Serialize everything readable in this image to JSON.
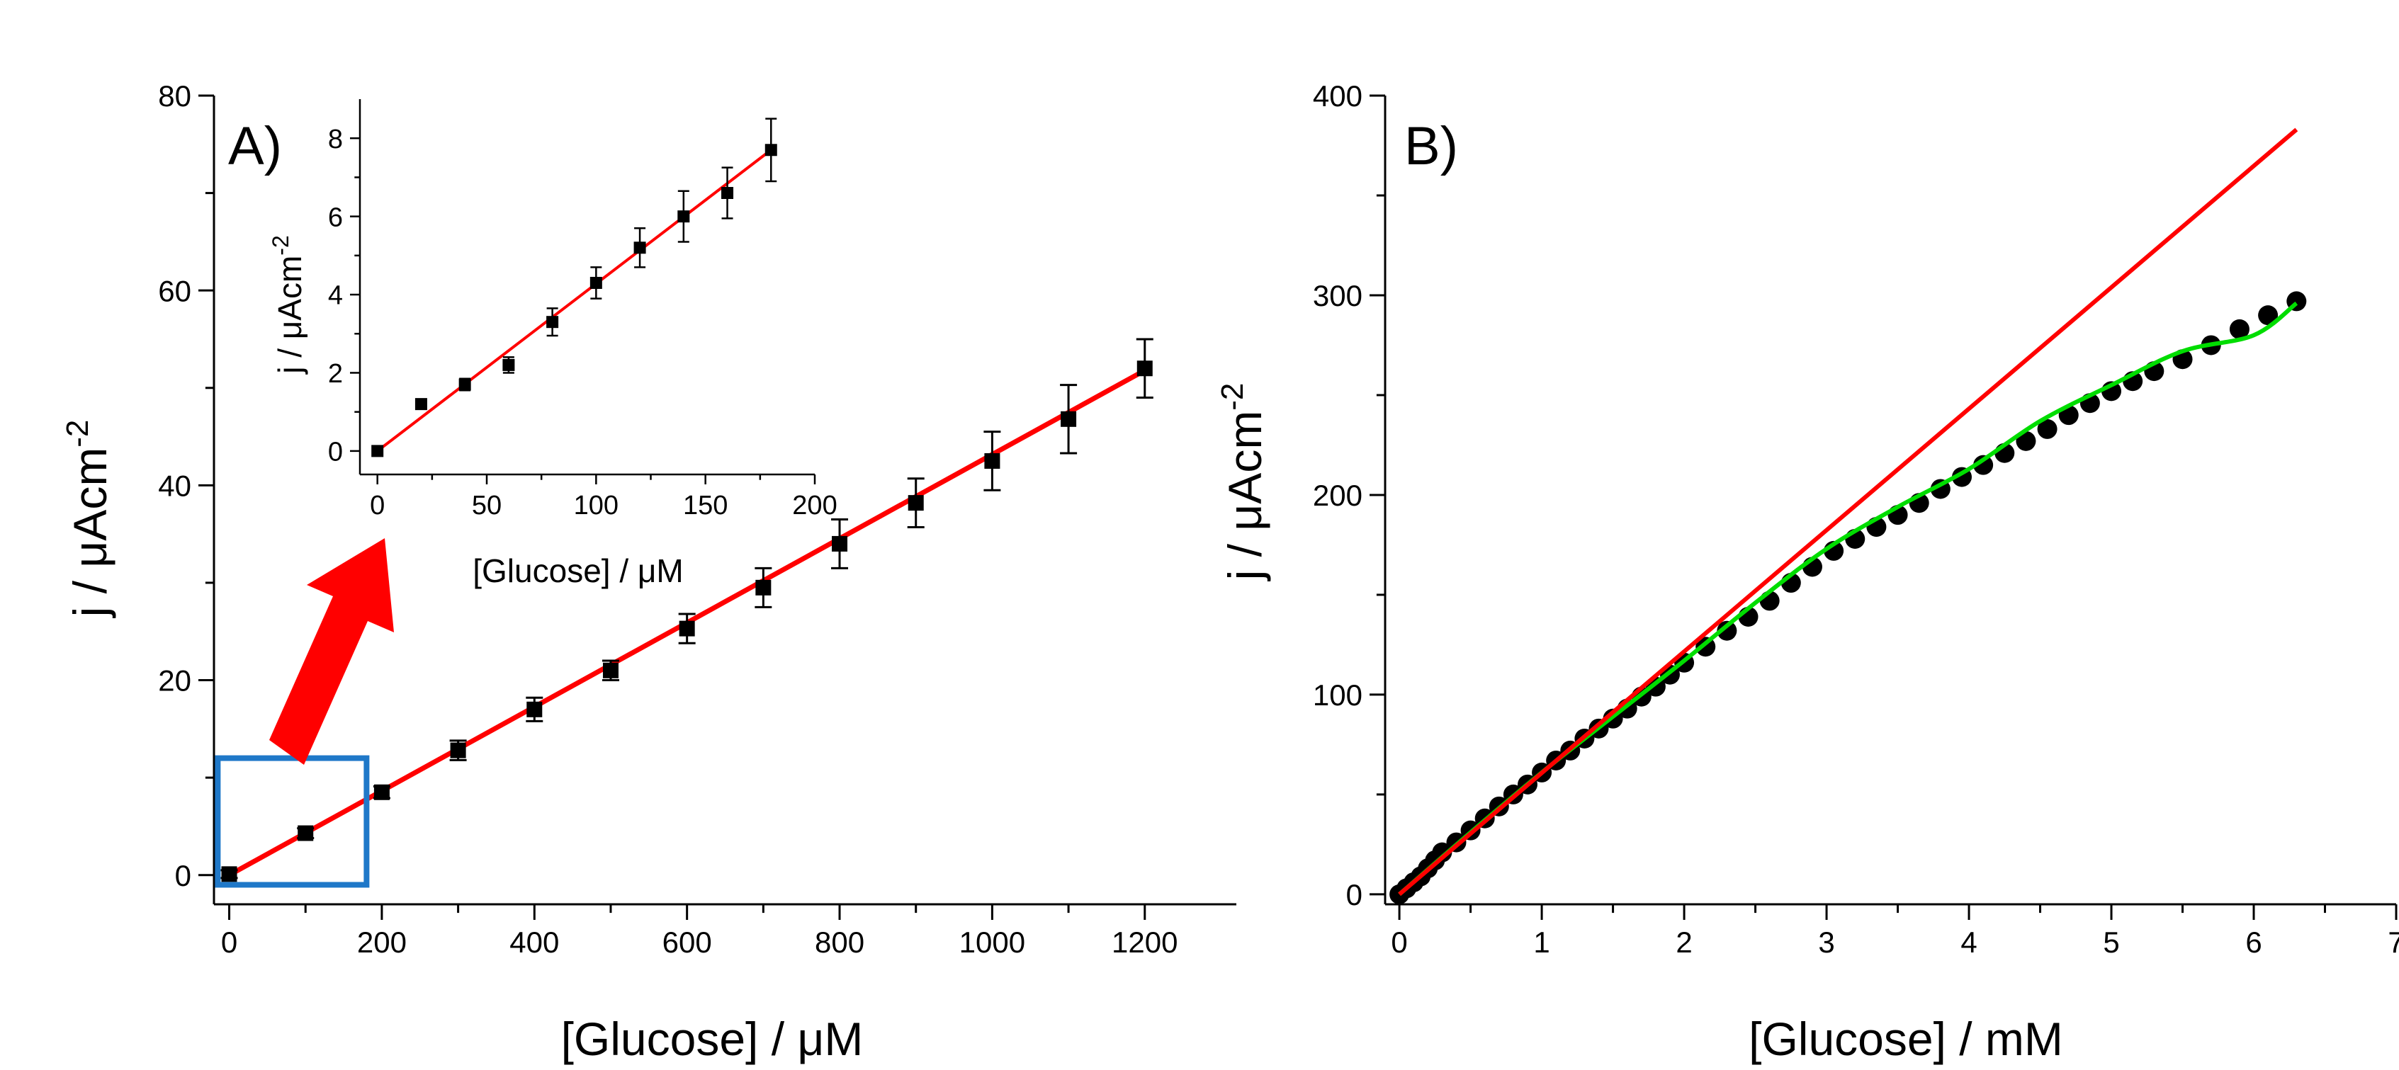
{
  "figure": {
    "colors": {
      "axis": "#000000",
      "fit_red": "#ff0000",
      "fit_green": "#00dd00",
      "zoom_box": "#1f78c8",
      "arrow": "#ff0000",
      "marker": "#000000"
    }
  },
  "chart_data": [
    {
      "id": "A",
      "type": "scatter",
      "panel_label": "A)",
      "xlabel": "[Glucose] / μM",
      "ylabel_main": "j / μAcm",
      "ylabel_sup": "-2",
      "xlim": [
        -20,
        1320
      ],
      "ylim": [
        -3,
        80
      ],
      "xticks": [
        0,
        200,
        400,
        600,
        800,
        1000,
        1200
      ],
      "yticks": [
        0,
        20,
        40,
        60,
        80
      ],
      "xtick_labels": [
        "0",
        "200",
        "400",
        "600",
        "800",
        "1000",
        "1200"
      ],
      "ytick_labels": [
        "0",
        "20",
        "40",
        "60",
        "80"
      ],
      "x": [
        0,
        100,
        200,
        300,
        400,
        500,
        600,
        700,
        800,
        900,
        1000,
        1100,
        1200
      ],
      "y": [
        0.1,
        4.3,
        8.5,
        12.8,
        17.0,
        21.0,
        25.3,
        29.5,
        34.0,
        38.2,
        42.5,
        46.8,
        52.0
      ],
      "err": [
        0.4,
        0.5,
        0.6,
        1.0,
        1.2,
        1.0,
        1.5,
        2.0,
        2.5,
        2.5,
        3.0,
        3.5,
        3.0
      ],
      "fit": {
        "name": "linear fit",
        "x": [
          0,
          1200
        ],
        "y": [
          0,
          51.8
        ]
      },
      "zoom_box_range": {
        "x": [
          -15,
          180
        ],
        "y": [
          -1,
          12
        ]
      }
    },
    {
      "id": "A-inset",
      "type": "scatter",
      "xlabel": "[Glucose] / μM",
      "ylabel_main": "j / μAcm",
      "ylabel_sup": "-2",
      "xlim": [
        -8,
        200
      ],
      "ylim": [
        -0.6,
        9
      ],
      "xticks": [
        0,
        50,
        100,
        150,
        200
      ],
      "yticks": [
        0,
        2,
        4,
        6,
        8
      ],
      "xtick_labels": [
        "0",
        "50",
        "100",
        "150",
        "200"
      ],
      "ytick_labels": [
        "0",
        "2",
        "4",
        "6",
        "8"
      ],
      "x": [
        0,
        20,
        40,
        60,
        80,
        100,
        120,
        140,
        160,
        180
      ],
      "y": [
        0.0,
        1.2,
        1.7,
        2.2,
        3.3,
        4.3,
        5.2,
        6.0,
        6.6,
        7.7
      ],
      "err": [
        0.1,
        0.1,
        0.15,
        0.2,
        0.35,
        0.4,
        0.5,
        0.65,
        0.65,
        0.8
      ],
      "fit": {
        "name": "linear fit",
        "x": [
          0,
          180
        ],
        "y": [
          0,
          7.7
        ]
      }
    },
    {
      "id": "B",
      "type": "scatter",
      "panel_label": "B)",
      "xlabel": "[Glucose] / mM",
      "ylabel_main": "j / μAcm",
      "ylabel_sup": "-2",
      "xlim": [
        -0.1,
        7
      ],
      "ylim": [
        -5,
        400
      ],
      "xticks": [
        0,
        1,
        2,
        3,
        4,
        5,
        6,
        7
      ],
      "yticks": [
        0,
        100,
        200,
        300,
        400
      ],
      "xtick_labels": [
        "0",
        "1",
        "2",
        "3",
        "4",
        "5",
        "6",
        "7"
      ],
      "ytick_labels": [
        "0",
        "100",
        "200",
        "300",
        "400"
      ],
      "x": [
        0,
        0.05,
        0.1,
        0.15,
        0.2,
        0.25,
        0.3,
        0.4,
        0.5,
        0.6,
        0.7,
        0.8,
        0.9,
        1.0,
        1.1,
        1.2,
        1.3,
        1.4,
        1.5,
        1.6,
        1.7,
        1.8,
        1.9,
        2.0,
        2.15,
        2.3,
        2.45,
        2.6,
        2.75,
        2.9,
        3.05,
        3.2,
        3.35,
        3.5,
        3.65,
        3.8,
        3.95,
        4.1,
        4.25,
        4.4,
        4.55,
        4.7,
        4.85,
        5.0,
        5.15,
        5.3,
        5.5,
        5.7,
        5.9,
        6.1,
        6.3
      ],
      "y": [
        0,
        3,
        6,
        9,
        13,
        17,
        21,
        26,
        32,
        38,
        44,
        50,
        55,
        61,
        67,
        72,
        78,
        83,
        88,
        93,
        99,
        104,
        110,
        116,
        124,
        132,
        139,
        147,
        156,
        164,
        172,
        178,
        184,
        190,
        196,
        203,
        209,
        215,
        221,
        227,
        233,
        240,
        246,
        252,
        257,
        262,
        268,
        275,
        283,
        290,
        297
      ],
      "fits": [
        {
          "name": "linear fit",
          "color": "red",
          "x": [
            0,
            6.3
          ],
          "y": [
            0,
            383
          ]
        },
        {
          "name": "curve fit",
          "color": "green",
          "x": [
            0,
            0.5,
            1.0,
            1.5,
            2.0,
            2.5,
            3.0,
            3.5,
            4.0,
            4.5,
            5.0,
            5.5,
            6.0,
            6.3
          ],
          "y": [
            0,
            31,
            61,
            89,
            117,
            146,
            173,
            194,
            213,
            237,
            255,
            272,
            280,
            296
          ]
        }
      ]
    }
  ]
}
